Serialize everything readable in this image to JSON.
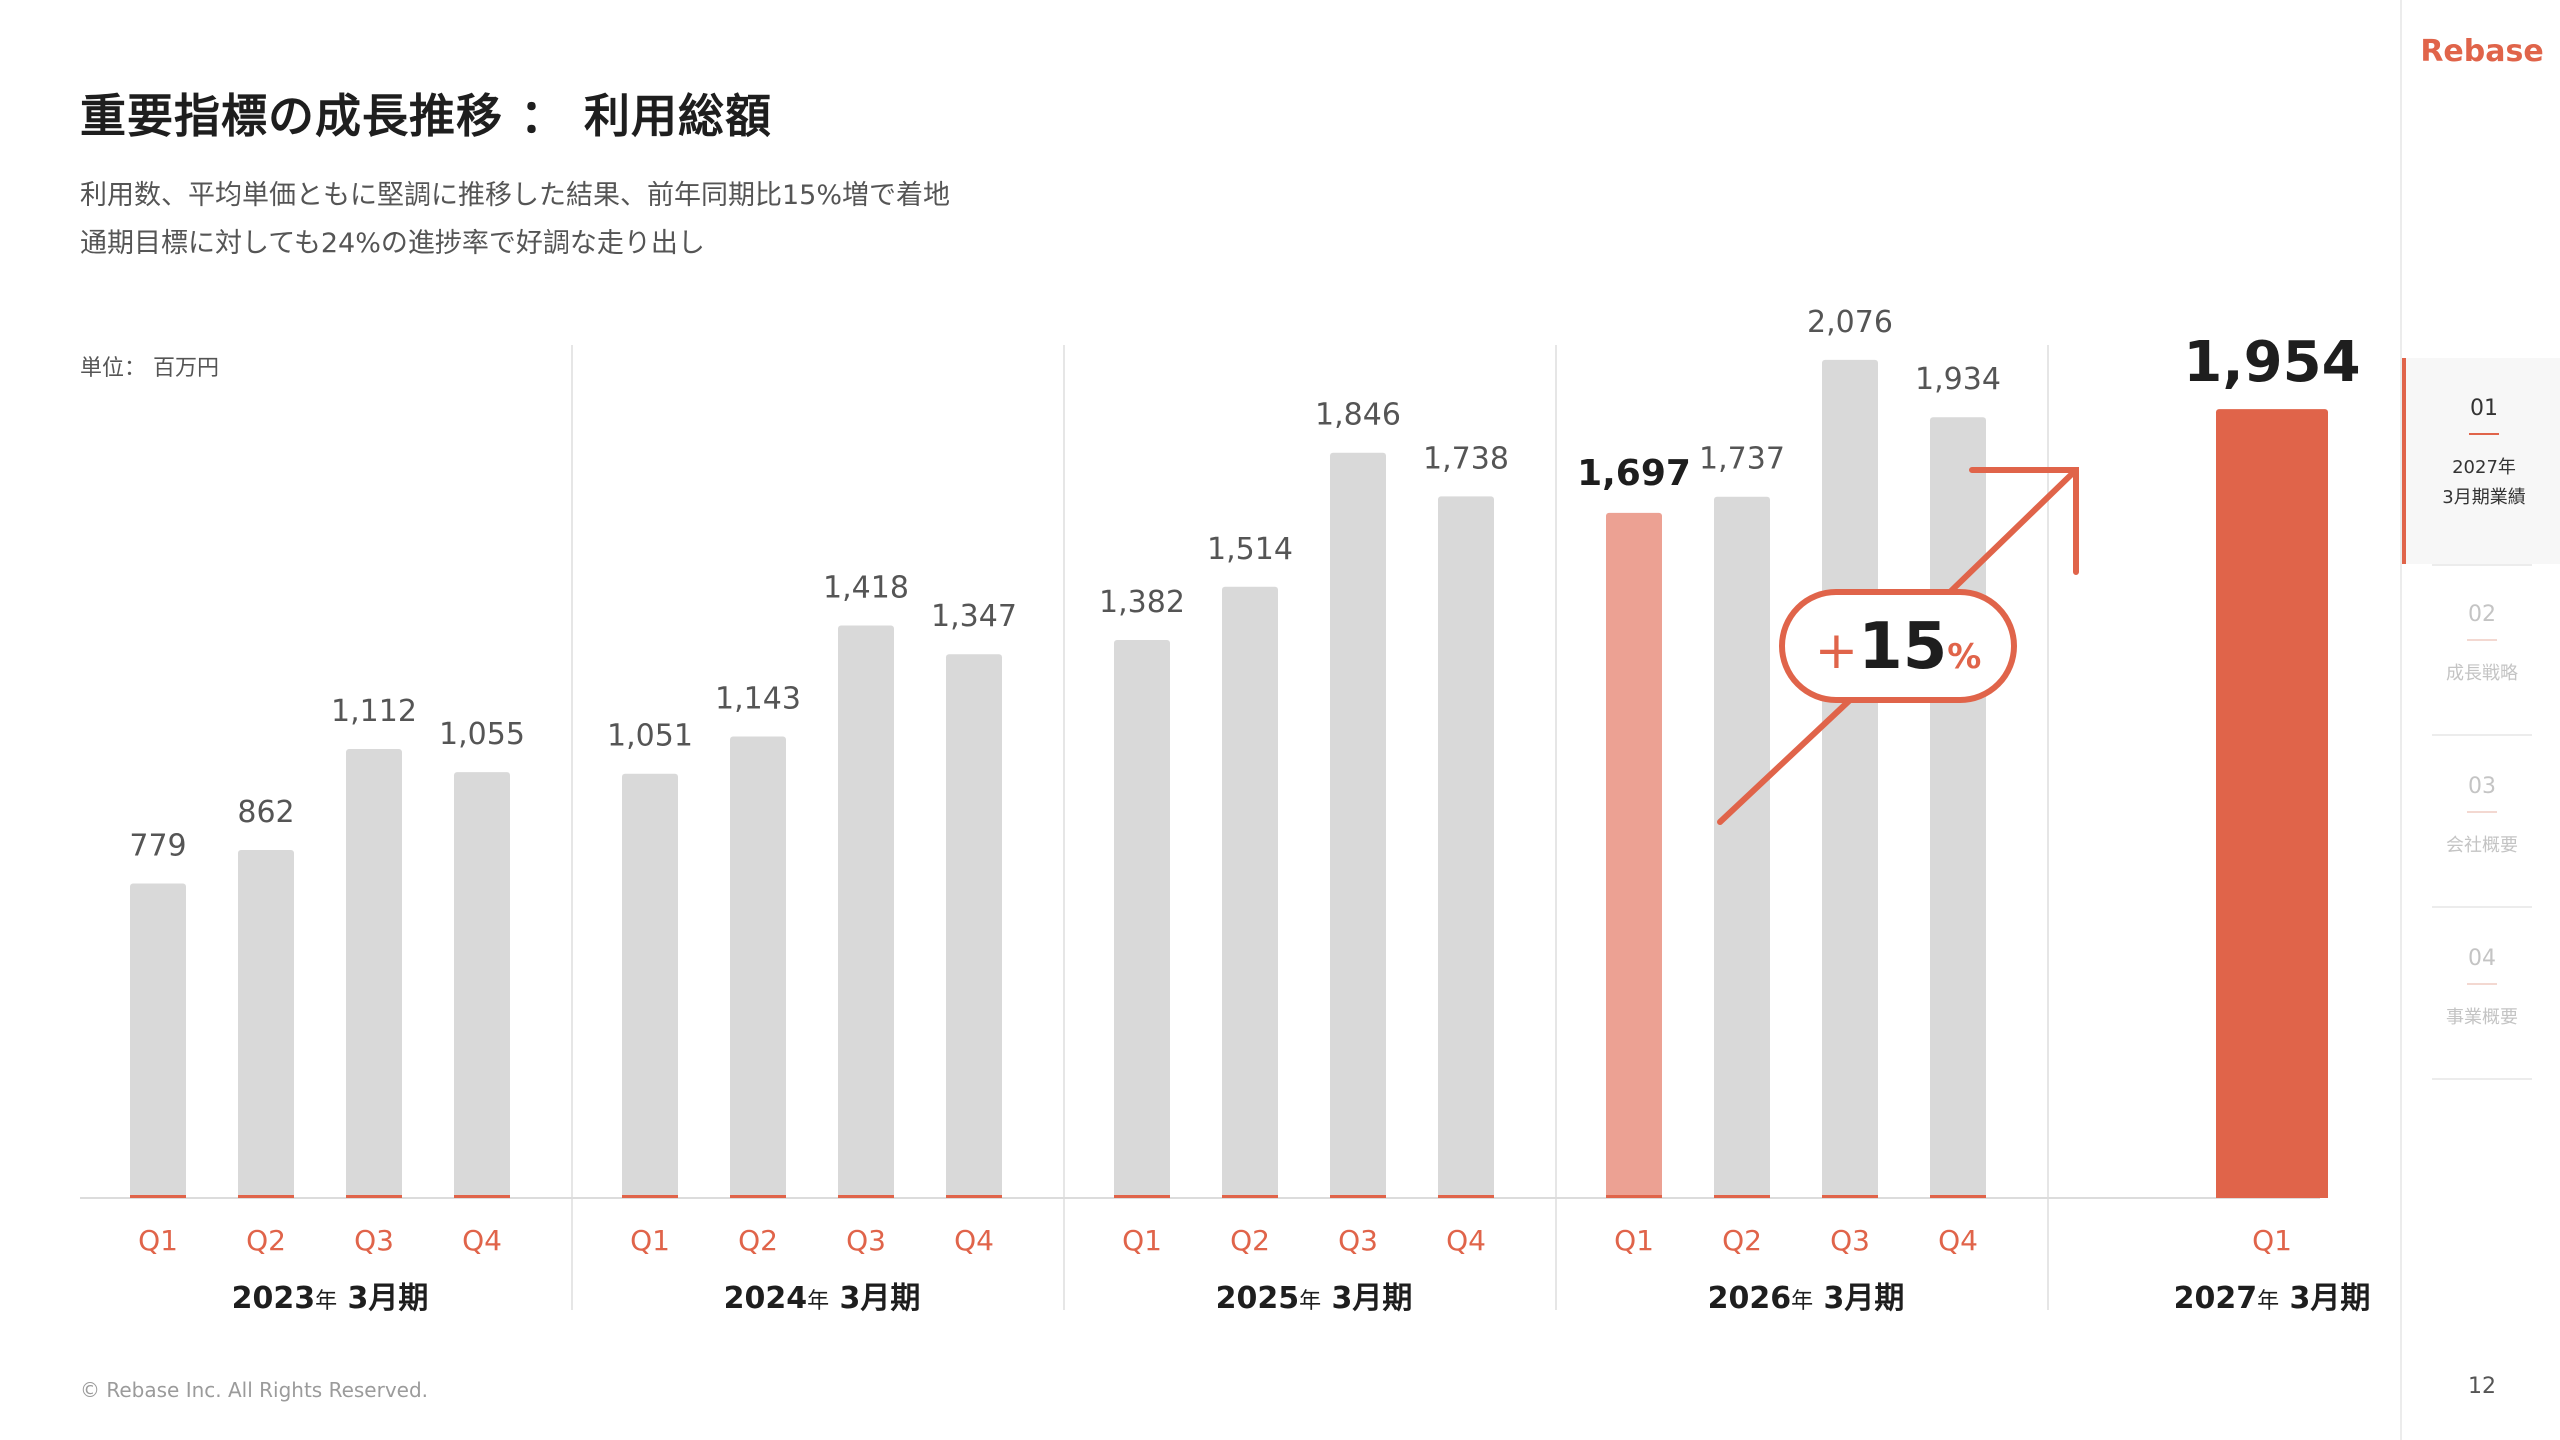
{
  "header": {
    "title": "重要指標の成長推移 ： 利用総額",
    "subtitle_lines": [
      "利用数、平均単価ともに堅調に推移した結果、前年同期比15%増で着地",
      "通期目標に対しても24%の進捗率で好調な走り出し"
    ]
  },
  "unit_label": "単位： 百万円",
  "chart_data": {
    "type": "bar",
    "groups": [
      {
        "label_year": "2023",
        "label_nen": "年",
        "label_period": " 3月期",
        "quarters": [
          "Q1",
          "Q2",
          "Q3",
          "Q4"
        ],
        "values": [
          779,
          862,
          1112,
          1055
        ],
        "labels": [
          "779",
          "862",
          "1,112",
          "1,055"
        ]
      },
      {
        "label_year": "2024",
        "label_nen": "年",
        "label_period": " 3月期",
        "quarters": [
          "Q1",
          "Q2",
          "Q3",
          "Q4"
        ],
        "values": [
          1051,
          1143,
          1418,
          1347
        ],
        "labels": [
          "1,051",
          "1,143",
          "1,418",
          "1,347"
        ]
      },
      {
        "label_year": "2025",
        "label_nen": "年",
        "label_period": " 3月期",
        "quarters": [
          "Q1",
          "Q2",
          "Q3",
          "Q4"
        ],
        "values": [
          1382,
          1514,
          1846,
          1738
        ],
        "labels": [
          "1,382",
          "1,514",
          "1,846",
          "1,738"
        ]
      },
      {
        "label_year": "2026",
        "label_nen": "年",
        "label_period": " 3月期",
        "quarters": [
          "Q1",
          "Q2",
          "Q3",
          "Q4"
        ],
        "values": [
          1697,
          1737,
          2076,
          1934
        ],
        "labels": [
          "1,697",
          "1,737",
          "2,076",
          "1,934"
        ]
      },
      {
        "label_year": "2027",
        "label_nen": "年",
        "label_period": " 3月期",
        "quarters": [
          "Q1"
        ],
        "values": [
          1954
        ],
        "labels": [
          "1,954"
        ]
      }
    ],
    "highlight": {
      "comparison_group": 3,
      "comparison_index": 0,
      "current_group": 4,
      "current_index": 0
    },
    "annotation": {
      "plus": "+",
      "number": "15",
      "unit": "%"
    },
    "ylim": [
      0,
      2150
    ],
    "colors": {
      "bar": "#d9d9d9",
      "comparison": "#eca193",
      "current": "#e0644a",
      "accent": "#e0644a",
      "quarter_label": "#e0644a"
    }
  },
  "footer": {
    "copyright": "© Rebase Inc. All Rights Reserved.",
    "page_number": "12"
  },
  "sidebar": {
    "brand": "Rebase",
    "items": [
      {
        "num": "01",
        "label_lines": [
          "2027年",
          "3月期業績"
        ],
        "active": true
      },
      {
        "num": "02",
        "label_lines": [
          "成長戦略"
        ],
        "active": false
      },
      {
        "num": "03",
        "label_lines": [
          "会社概要"
        ],
        "active": false
      },
      {
        "num": "04",
        "label_lines": [
          "事業概要"
        ],
        "active": false
      }
    ]
  }
}
